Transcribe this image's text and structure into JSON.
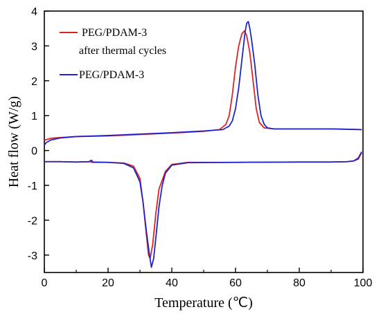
{
  "chart_data": {
    "type": "line",
    "xlabel": "Temperature (℃)",
    "ylabel": "Heat flow (W/g)",
    "xlim": [
      0,
      100
    ],
    "ylim": [
      -3.5,
      4
    ],
    "xticks": [
      "0",
      "20",
      "40",
      "60",
      "80",
      "100"
    ],
    "yticks": [
      "-3",
      "-2",
      "-1",
      "0",
      "1",
      "2",
      "3",
      "4"
    ],
    "grid": false,
    "legend": "top-left",
    "series": [
      {
        "name": "PEG/PDAM-3",
        "name_line2": "after thermal cycles",
        "color": "#dd2222",
        "segments": [
          [
            [
              0.2,
              0.3
            ],
            [
              2,
              0.35
            ],
            [
              5,
              0.37
            ],
            [
              10,
              0.4
            ],
            [
              20,
              0.42
            ],
            [
              30,
              0.46
            ],
            [
              40,
              0.5
            ],
            [
              50,
              0.55
            ],
            [
              55,
              0.6
            ],
            [
              57,
              0.75
            ],
            [
              58,
              1.0
            ],
            [
              59,
              1.6
            ],
            [
              60,
              2.4
            ],
            [
              61,
              3.0
            ],
            [
              62,
              3.35
            ],
            [
              62.8,
              3.43
            ],
            [
              63.5,
              3.3
            ],
            [
              64.5,
              2.8
            ],
            [
              65.5,
              2.0
            ],
            [
              66.5,
              1.2
            ],
            [
              67.5,
              0.8
            ],
            [
              69,
              0.65
            ],
            [
              72,
              0.62
            ],
            [
              80,
              0.62
            ],
            [
              90,
              0.62
            ],
            [
              99.5,
              0.6
            ]
          ],
          [
            [
              0,
              -0.32
            ],
            [
              5,
              -0.32
            ],
            [
              10,
              -0.33
            ],
            [
              14.5,
              -0.32
            ],
            [
              15,
              -0.34
            ],
            [
              20,
              -0.34
            ],
            [
              25,
              -0.36
            ],
            [
              28,
              -0.45
            ],
            [
              30,
              -0.8
            ],
            [
              31,
              -1.5
            ],
            [
              32,
              -2.4
            ],
            [
              32.7,
              -3.0
            ],
            [
              33.2,
              -3.1
            ],
            [
              34,
              -2.7
            ],
            [
              35,
              -1.8
            ],
            [
              36,
              -1.1
            ],
            [
              38,
              -0.6
            ],
            [
              40,
              -0.4
            ],
            [
              45,
              -0.34
            ],
            [
              60,
              -0.34
            ],
            [
              80,
              -0.33
            ],
            [
              90,
              -0.33
            ],
            [
              95,
              -0.32
            ],
            [
              97,
              -0.3
            ],
            [
              98.5,
              -0.25
            ],
            [
              99.5,
              -0.08
            ]
          ]
        ]
      },
      {
        "name": "PEG/PDAM-3",
        "color": "#2222cc",
        "segments": [
          [
            [
              0,
              0.15
            ],
            [
              0.5,
              0.22
            ],
            [
              2,
              0.3
            ],
            [
              5,
              0.36
            ],
            [
              10,
              0.4
            ],
            [
              20,
              0.43
            ],
            [
              30,
              0.47
            ],
            [
              40,
              0.51
            ],
            [
              50,
              0.56
            ],
            [
              56,
              0.6
            ],
            [
              58,
              0.7
            ],
            [
              59,
              0.85
            ],
            [
              60,
              1.2
            ],
            [
              61,
              1.8
            ],
            [
              62,
              2.6
            ],
            [
              63,
              3.4
            ],
            [
              63.5,
              3.65
            ],
            [
              64,
              3.7
            ],
            [
              64.5,
              3.5
            ],
            [
              65,
              3.2
            ],
            [
              66,
              2.5
            ],
            [
              67,
              1.6
            ],
            [
              68,
              1.0
            ],
            [
              69,
              0.75
            ],
            [
              70,
              0.65
            ],
            [
              72,
              0.62
            ],
            [
              80,
              0.62
            ],
            [
              90,
              0.62
            ],
            [
              99.5,
              0.6
            ]
          ],
          [
            [
              0,
              -0.32
            ],
            [
              5,
              -0.32
            ],
            [
              10,
              -0.33
            ],
            [
              14,
              -0.32
            ],
            [
              14.8,
              -0.28
            ],
            [
              15.2,
              -0.33
            ],
            [
              20,
              -0.34
            ],
            [
              25,
              -0.37
            ],
            [
              28,
              -0.5
            ],
            [
              30,
              -0.9
            ],
            [
              31,
              -1.5
            ],
            [
              32,
              -2.3
            ],
            [
              33,
              -3.0
            ],
            [
              33.6,
              -3.35
            ],
            [
              34.3,
              -3.1
            ],
            [
              35,
              -2.5
            ],
            [
              36,
              -1.6
            ],
            [
              37,
              -1.0
            ],
            [
              38,
              -0.65
            ],
            [
              40,
              -0.42
            ],
            [
              45,
              -0.35
            ],
            [
              60,
              -0.34
            ],
            [
              80,
              -0.33
            ],
            [
              90,
              -0.33
            ],
            [
              95,
              -0.32
            ],
            [
              97,
              -0.3
            ],
            [
              98.5,
              -0.22
            ],
            [
              99.5,
              -0.05
            ]
          ]
        ]
      }
    ]
  }
}
